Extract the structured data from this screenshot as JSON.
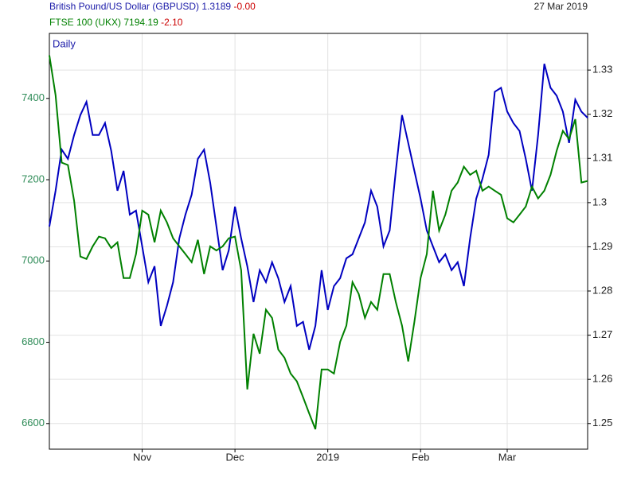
{
  "chart_data": {
    "type": "line",
    "date": "27 Mar 2019",
    "period": "Daily",
    "categories": [
      null,
      null,
      null,
      null,
      null,
      null,
      null,
      null,
      null,
      null,
      null,
      null,
      null,
      null,
      null,
      "Nov",
      null,
      null,
      null,
      null,
      null,
      null,
      null,
      null,
      null,
      null,
      null,
      null,
      null,
      null,
      "Dec",
      null,
      null,
      null,
      null,
      null,
      null,
      null,
      null,
      null,
      null,
      null,
      null,
      null,
      null,
      "2019",
      null,
      null,
      null,
      null,
      null,
      null,
      null,
      null,
      null,
      null,
      null,
      null,
      null,
      null,
      "Feb",
      null,
      null,
      null,
      null,
      null,
      null,
      null,
      null,
      null,
      null,
      null,
      null,
      null,
      "Mar",
      null,
      null,
      null,
      null,
      null,
      null,
      null,
      null,
      null,
      null,
      null,
      null,
      null
    ],
    "series": [
      {
        "name": "British Pound/US Dollar (GBPUSD)",
        "last": 1.3189,
        "change": "-0.00",
        "color": "#0000c0",
        "axis": "y2",
        "values": [
          1.2946,
          1.3027,
          1.312,
          1.3099,
          1.3153,
          1.3198,
          1.3228,
          1.3153,
          1.3153,
          1.318,
          1.3117,
          1.3027,
          1.3072,
          1.2973,
          1.2982,
          1.2901,
          1.282,
          1.2856,
          1.2721,
          1.2766,
          1.282,
          1.2919,
          1.2973,
          1.3018,
          1.3099,
          1.312,
          1.3045,
          1.2946,
          1.2847,
          1.2892,
          1.2991,
          1.2919,
          1.2856,
          1.2775,
          1.2847,
          1.282,
          1.2865,
          1.2829,
          1.2775,
          1.2811,
          1.2721,
          1.273,
          1.2667,
          1.2721,
          1.2847,
          1.2757,
          1.2811,
          1.2829,
          1.2874,
          1.2883,
          1.2919,
          1.2955,
          1.3027,
          1.2991,
          1.2901,
          1.2937,
          1.3072,
          1.3198,
          1.3135,
          1.3072,
          1.3009,
          1.2937,
          1.2901,
          1.2865,
          1.2883,
          1.2847,
          1.2865,
          1.2811,
          1.2919,
          1.3009,
          1.3054,
          1.3108,
          1.3251,
          1.326,
          1.3206,
          1.318,
          1.3162,
          1.3099,
          1.3027,
          1.3153,
          1.3314,
          1.326,
          1.3242,
          1.3206,
          1.3135,
          1.3233,
          1.3206,
          1.3192
        ]
      },
      {
        "name": "FTSE 100 (UKX)",
        "last": 7194.19,
        "change": "-2.10",
        "color": "#008000",
        "axis": "y",
        "values": [
          7506,
          7408,
          7242,
          7236,
          7148,
          7011,
          7005,
          7036,
          7060,
          7056,
          7032,
          7046,
          6958,
          6958,
          7017,
          7124,
          7114,
          7046,
          7124,
          7095,
          7056,
          7036,
          7017,
          6997,
          7052,
          6968,
          7036,
          7026,
          7036,
          7056,
          7060,
          6977,
          6684,
          6821,
          6772,
          6880,
          6860,
          6782,
          6762,
          6723,
          6704,
          6665,
          6625,
          6586,
          6733,
          6733,
          6723,
          6801,
          6841,
          6948,
          6919,
          6860,
          6899,
          6880,
          6968,
          6968,
          6899,
          6841,
          6753,
          6850,
          6958,
          7017,
          7173,
          7075,
          7114,
          7173,
          7193,
          7232,
          7212,
          7222,
          7173,
          7183,
          7173,
          7163,
          7105,
          7095,
          7114,
          7134,
          7183,
          7154,
          7173,
          7212,
          7271,
          7320,
          7300,
          7349,
          7193,
          7197
        ]
      }
    ],
    "ylim": [
      6537,
      7560
    ],
    "yticks": [
      6600,
      6800,
      7000,
      7200,
      7400
    ],
    "ycolor": "#2e8b57",
    "y2lim": [
      1.2442,
      1.3383
    ],
    "y2ticks": [
      1.25,
      1.26,
      1.27,
      1.28,
      1.29,
      1.3,
      1.31,
      1.32,
      1.33
    ],
    "grid": true
  }
}
